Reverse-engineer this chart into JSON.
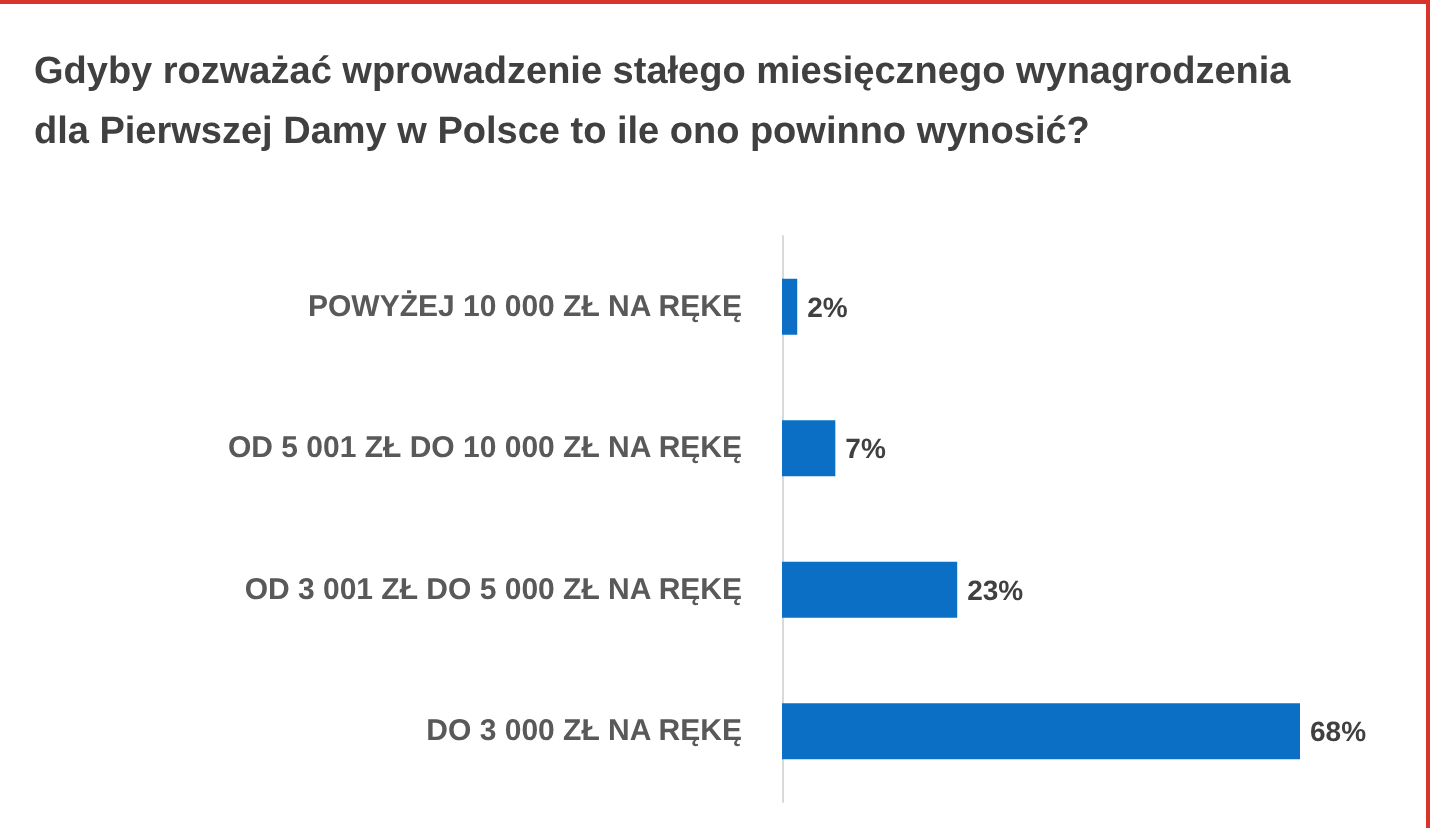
{
  "chart_data": {
    "type": "bar",
    "orientation": "horizontal",
    "title": "Gdyby rozważać wprowadzenie stałego miesięcznego wynagrodzenia\ndla Pierwszej Damy w Polsce to ile ono powinno wynosić?",
    "categories": [
      "POWYŻEJ 10 000 ZŁ NA RĘKĘ",
      "OD 5 001 ZŁ DO 10 000 ZŁ NA RĘKĘ",
      "OD 3 001 ZŁ DO 5 000 ZŁ NA RĘKĘ",
      "DO 3 000 ZŁ NA RĘKĘ"
    ],
    "values": [
      2,
      7,
      23,
      68
    ],
    "value_labels": [
      "2%",
      "7%",
      "23%",
      "68%"
    ],
    "color": "#0b6fc6"
  }
}
